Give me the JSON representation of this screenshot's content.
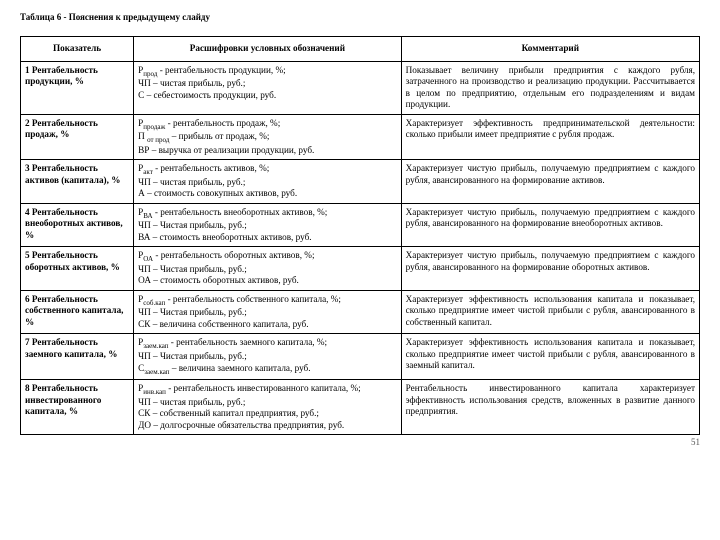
{
  "caption": "Таблица 6 - Пояснения к предыдущему слайду",
  "pagenum": "51",
  "headers": {
    "c1": "Показатель",
    "c2": "Расшифровки условных обозначений",
    "c3": "Комментарий"
  },
  "rows": [
    {
      "indicator": "1 Рентабельность продукции, %",
      "decode": "Р<sub>прод</sub> - рентабельность продукции, %;<br>ЧП – чистая прибыль, руб.;<br>С – себестоимость продукции, руб.",
      "comment": "Показывает величину прибыли предприятия с каждого рубля, затраченного на производство и реализацию продукции. Рассчитывается в целом по предприятию, отдельным его подразделениям и видам продукции."
    },
    {
      "indicator": "2 Рентабельность продаж, %",
      "decode": "Р<sub>продаж</sub> - рентабельность продаж, %;<br>П <sub>от прод</sub> – прибыль от продаж, %;<br>ВР – выручка от реализации продукции, руб.",
      "comment": "Характеризует эффективность предпринимательской деятельности: сколько прибыли имеет предприятие с рубля продаж."
    },
    {
      "indicator": "3 Рентабельность активов (капитала), %",
      "decode": "Р<sub>акт</sub> - рентабельность активов, %;<br>ЧП – чистая прибыль, руб.;<br>А – стоимость совокупных активов, руб.",
      "comment": "Характеризует чистую прибыль, получаемую предприятием с каждого рубля, авансированного на формирование активов."
    },
    {
      "indicator": "4 Рентабельность внеоборотных активов, %",
      "decode": "Р<sub>ВА</sub> - рентабельность внеоборотных активов, %;<br>ЧП – Чистая прибыль, руб.;<br>ВА – стоимость внеоборотных активов, руб.",
      "comment": "Характеризует чистую прибыль, получаемую предприятием с каждого рубля, авансированного на формирование внеоборотных активов."
    },
    {
      "indicator": "5 Рентабельность оборотных активов, %",
      "decode": "Р<sub>ОА</sub> - рентабельность оборотных активов, %;<br>ЧП – Чистая прибыль, руб.;<br>ОА – стоимость оборотных активов, руб.",
      "comment": "Характеризует чистую прибыль, получаемую предприятием с каждого рубля, авансированного на формирование оборотных активов."
    },
    {
      "indicator": "6 Рентабельность собственного капитала, %",
      "decode": "Р<sub>соб.кап</sub> - рентабельность собственного капитала, %;<br>ЧП – Чистая прибыль, руб.;<br>СК – величина собственного капитала, руб.",
      "comment": "Характеризует эффективность использования капитала и показывает, сколько предприятие имеет чистой прибыли с рубля, авансированного в собственный капитал."
    },
    {
      "indicator": "7 Рентабельность заемного капитала, %",
      "decode": "Р<sub>заем.кап</sub> - рентабельность заемного капитала, %;<br>ЧП – Чистая прибыль, руб.;<br>С<sub>заем.кап</sub> – величина заемного капитала, руб.",
      "comment": "Характеризует эффективность использования капитала и показывает, сколько предприятие имеет чистой прибыли с рубля, авансированного в заемный капитал."
    },
    {
      "indicator": "8 Рентабельность инвестированного капитала, %",
      "decode": "Р<sub>инв.кап</sub> - рентабельность инвестированного капитала, %;<br>ЧП – чистая прибыль, руб.;<br>СК – собственный капитал предприятия, руб.;<br>ДО – долгосрочные обязательства предприятия, руб.",
      "comment": "Рентабельность инвестированного капитала характеризует эффективность использования средств, вложенных в развитие данного предприятия."
    }
  ]
}
